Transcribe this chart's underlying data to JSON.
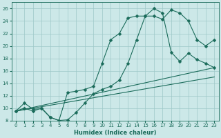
{
  "xlabel": "Humidex (Indice chaleur)",
  "background_color": "#cce8e8",
  "grid_color": "#9ec8c8",
  "line_color": "#1a6b5a",
  "xlim": [
    -0.5,
    23.5
  ],
  "ylim": [
    8,
    27
  ],
  "xticks": [
    0,
    1,
    2,
    3,
    4,
    5,
    6,
    7,
    8,
    9,
    10,
    11,
    12,
    13,
    14,
    15,
    16,
    17,
    18,
    19,
    20,
    21,
    22,
    23
  ],
  "yticks": [
    8,
    10,
    12,
    14,
    16,
    18,
    20,
    22,
    24,
    26
  ],
  "line1_x": [
    0,
    1,
    2,
    3,
    4,
    5,
    6,
    7,
    8,
    9,
    10,
    11,
    12,
    13,
    14,
    15,
    16,
    17,
    18,
    19,
    20,
    21,
    22,
    23
  ],
  "line1_y": [
    9.5,
    10.8,
    9.8,
    9.9,
    8.5,
    8.0,
    8.1,
    9.3,
    10.8,
    12.3,
    13.0,
    13.5,
    14.5,
    17.2,
    21.0,
    24.8,
    24.8,
    24.3,
    25.8,
    25.3,
    24.0,
    21.0,
    20.0,
    21.0
  ],
  "line2_x": [
    0,
    1,
    2,
    3,
    4,
    5,
    6,
    7,
    8,
    9,
    10,
    11,
    12,
    13,
    14,
    15,
    16,
    17,
    18,
    19,
    20,
    21,
    22,
    23
  ],
  "line2_y": [
    9.5,
    10.0,
    9.5,
    10.0,
    8.5,
    8.0,
    12.5,
    12.7,
    13.0,
    13.5,
    17.2,
    21.0,
    22.0,
    24.5,
    24.8,
    24.8,
    26.0,
    25.3,
    19.0,
    17.5,
    18.8,
    17.8,
    17.2,
    16.5
  ],
  "line3_x": [
    0,
    23
  ],
  "line3_y": [
    9.5,
    16.5
  ],
  "line4_x": [
    0,
    23
  ],
  "line4_y": [
    9.5,
    15.0
  ]
}
